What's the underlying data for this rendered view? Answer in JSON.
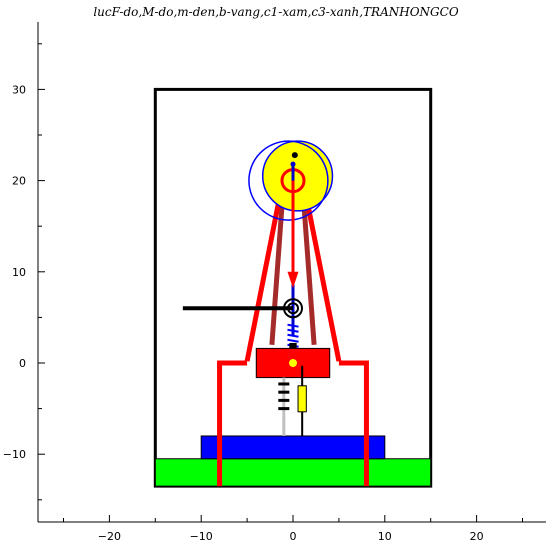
{
  "title": "lucF-do,M-do,m-den,b-vang,c1-xam,c3-xanh,TRANHONGCO",
  "axes": {
    "xlim": [
      -27.5,
      27.5
    ],
    "ylim": [
      -17.5,
      37.0
    ],
    "x_tick_labels": [
      "−20",
      "−10",
      "0",
      "10",
      "20"
    ],
    "x_tick_values": [
      -20,
      -10,
      0,
      10,
      20
    ],
    "y_tick_labels": [
      "30",
      "20",
      "10",
      "0",
      "−10"
    ],
    "y_tick_values": [
      30,
      20,
      10,
      0,
      -10
    ]
  },
  "colors": {
    "frame": "#000000",
    "ground": "#00ff00",
    "base": "#0000ff",
    "force": "#ff0000",
    "cable": "#a52a2a",
    "spring": "#0000ff",
    "ball": "#ffff00",
    "circle": "#0000ff",
    "damper_gray": "#c0c0c0",
    "damper_black": "#000000"
  }
}
